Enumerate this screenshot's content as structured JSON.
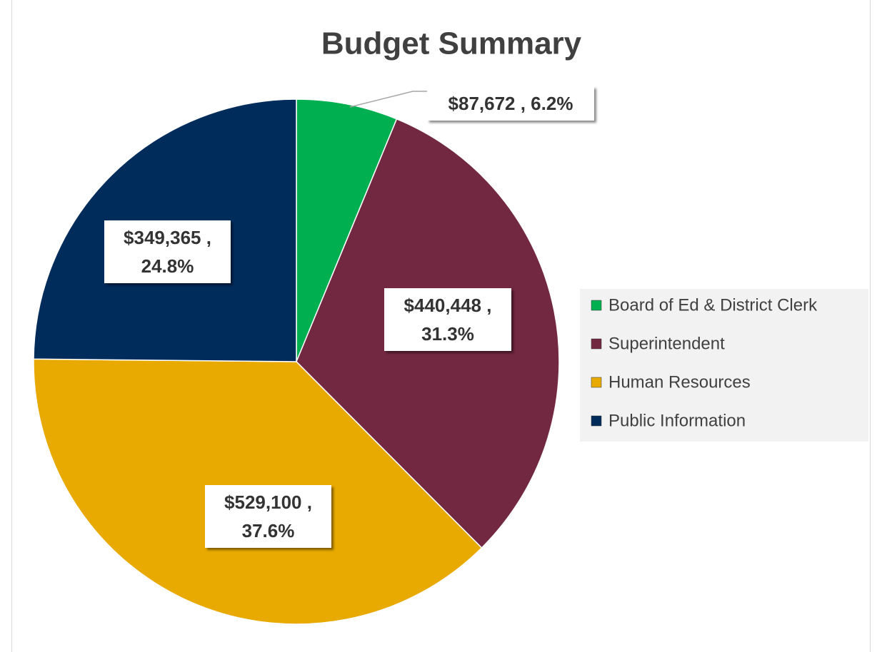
{
  "chart_data": {
    "type": "pie",
    "title": "Budget Summary",
    "categories": [
      "Board of Ed & District Clerk",
      "Superintendent",
      "Human Resources",
      "Public Information"
    ],
    "values": [
      87672,
      440448,
      529100,
      349365
    ],
    "value_labels": [
      "$87,672 , 6.2%",
      "$440,448 , 31.3%",
      "$529,100 , 37.6%",
      "$349,365 , 24.8%"
    ],
    "colors": [
      "#00b050",
      "#722840",
      "#e8a900",
      "#002c5c"
    ],
    "legend": "right"
  }
}
